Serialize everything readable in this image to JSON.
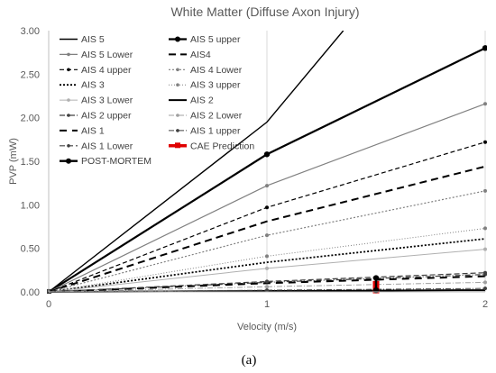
{
  "chart_data": {
    "type": "line",
    "title": "White Matter (Diffuse Axon Injury)",
    "xlabel": "Velocity (m/s)",
    "ylabel": "PVP (mW)",
    "xlim": [
      0,
      2
    ],
    "ylim": [
      0,
      3
    ],
    "x_ticks": [
      "0",
      "1",
      "2"
    ],
    "y_ticks": [
      "0.00",
      "0.50",
      "1.00",
      "1.50",
      "2.00",
      "2.50",
      "3.00"
    ],
    "grid": "vertical",
    "legend_position": "top-left",
    "caption": "(a)",
    "series": [
      {
        "name": "AIS 5",
        "x": [
          0,
          1,
          1.35
        ],
        "y": [
          0,
          1.95,
          3.0
        ],
        "color": "#000000",
        "width": 1.4,
        "dash": "",
        "marker": "none"
      },
      {
        "name": "AIS 5 upper",
        "x": [
          0,
          1,
          2
        ],
        "y": [
          0,
          1.58,
          2.8
        ],
        "color": "#000000",
        "width": 2.2,
        "dash": "",
        "marker": "circle"
      },
      {
        "name": "AIS 5 Lower",
        "x": [
          0,
          1,
          2
        ],
        "y": [
          0,
          1.22,
          2.16
        ],
        "color": "#808080",
        "width": 1.2,
        "dash": "",
        "marker": "circle"
      },
      {
        "name": "AIS4",
        "x": [
          0,
          1,
          2
        ],
        "y": [
          0,
          0.81,
          1.44
        ],
        "color": "#000000",
        "width": 2.0,
        "dash": "8,5",
        "marker": "none"
      },
      {
        "name": "AIS 4 upper",
        "x": [
          0,
          1,
          2
        ],
        "y": [
          0,
          0.97,
          1.72
        ],
        "color": "#000000",
        "width": 1.2,
        "dash": "5,3",
        "marker": "circle"
      },
      {
        "name": "AIS 4 Lower",
        "x": [
          0,
          1,
          2
        ],
        "y": [
          0,
          0.65,
          1.16
        ],
        "color": "#808080",
        "width": 1.2,
        "dash": "2,2",
        "marker": "circle"
      },
      {
        "name": "AIS 3",
        "x": [
          0,
          1,
          2
        ],
        "y": [
          0,
          0.34,
          0.61
        ],
        "color": "#000000",
        "width": 1.8,
        "dash": "2,2",
        "marker": "none"
      },
      {
        "name": "AIS 3 upper",
        "x": [
          0,
          1,
          2
        ],
        "y": [
          0,
          0.41,
          0.73
        ],
        "color": "#808080",
        "width": 1.0,
        "dash": "1,2",
        "marker": "circle"
      },
      {
        "name": "AIS 3 Lower",
        "x": [
          0,
          1,
          2
        ],
        "y": [
          0,
          0.27,
          0.49
        ],
        "color": "#b0b0b0",
        "width": 1.0,
        "dash": "",
        "marker": "circle"
      },
      {
        "name": "AIS 2",
        "x": [
          0,
          1,
          2
        ],
        "y": [
          0,
          0.01,
          0.02
        ],
        "color": "#000000",
        "width": 2.0,
        "dash": "",
        "marker": "none"
      },
      {
        "name": "AIS 2 upper",
        "x": [
          0,
          1,
          2
        ],
        "y": [
          0,
          0.11,
          0.2
        ],
        "color": "#404040",
        "width": 1.2,
        "dash": "6,2,1,2",
        "marker": "circle"
      },
      {
        "name": "AIS 2 Lower",
        "x": [
          0,
          1,
          2
        ],
        "y": [
          0,
          0.06,
          0.11
        ],
        "color": "#a0a0a0",
        "width": 1.0,
        "dash": "6,2,1,2",
        "marker": "circle"
      },
      {
        "name": "AIS 1",
        "x": [
          0,
          1,
          2
        ],
        "y": [
          0,
          0.1,
          0.18
        ],
        "color": "#000000",
        "width": 2.0,
        "dash": "8,6",
        "marker": "none"
      },
      {
        "name": "AIS 1 upper",
        "x": [
          0,
          1,
          2
        ],
        "y": [
          0,
          0.02,
          0.04
        ],
        "color": "#404040",
        "width": 1.0,
        "dash": "6,2,1,2",
        "marker": "circle"
      },
      {
        "name": "AIS 1 Lower",
        "x": [
          0,
          1,
          2
        ],
        "y": [
          0,
          0.12,
          0.22
        ],
        "color": "#404040",
        "width": 1.2,
        "dash": "6,3",
        "marker": "circle"
      },
      {
        "name": "CAE Prediction",
        "x": [
          1.5,
          1.5
        ],
        "y": [
          0.02,
          0.09
        ],
        "color": "#e00000",
        "width": 4.5,
        "dash": "",
        "marker": "square"
      },
      {
        "name": "POST-MORTEM",
        "x": [
          1.5,
          1.5
        ],
        "y": [
          0.02,
          0.16
        ],
        "color": "#000000",
        "width": 2.4,
        "dash": "",
        "marker": "circle"
      }
    ]
  }
}
